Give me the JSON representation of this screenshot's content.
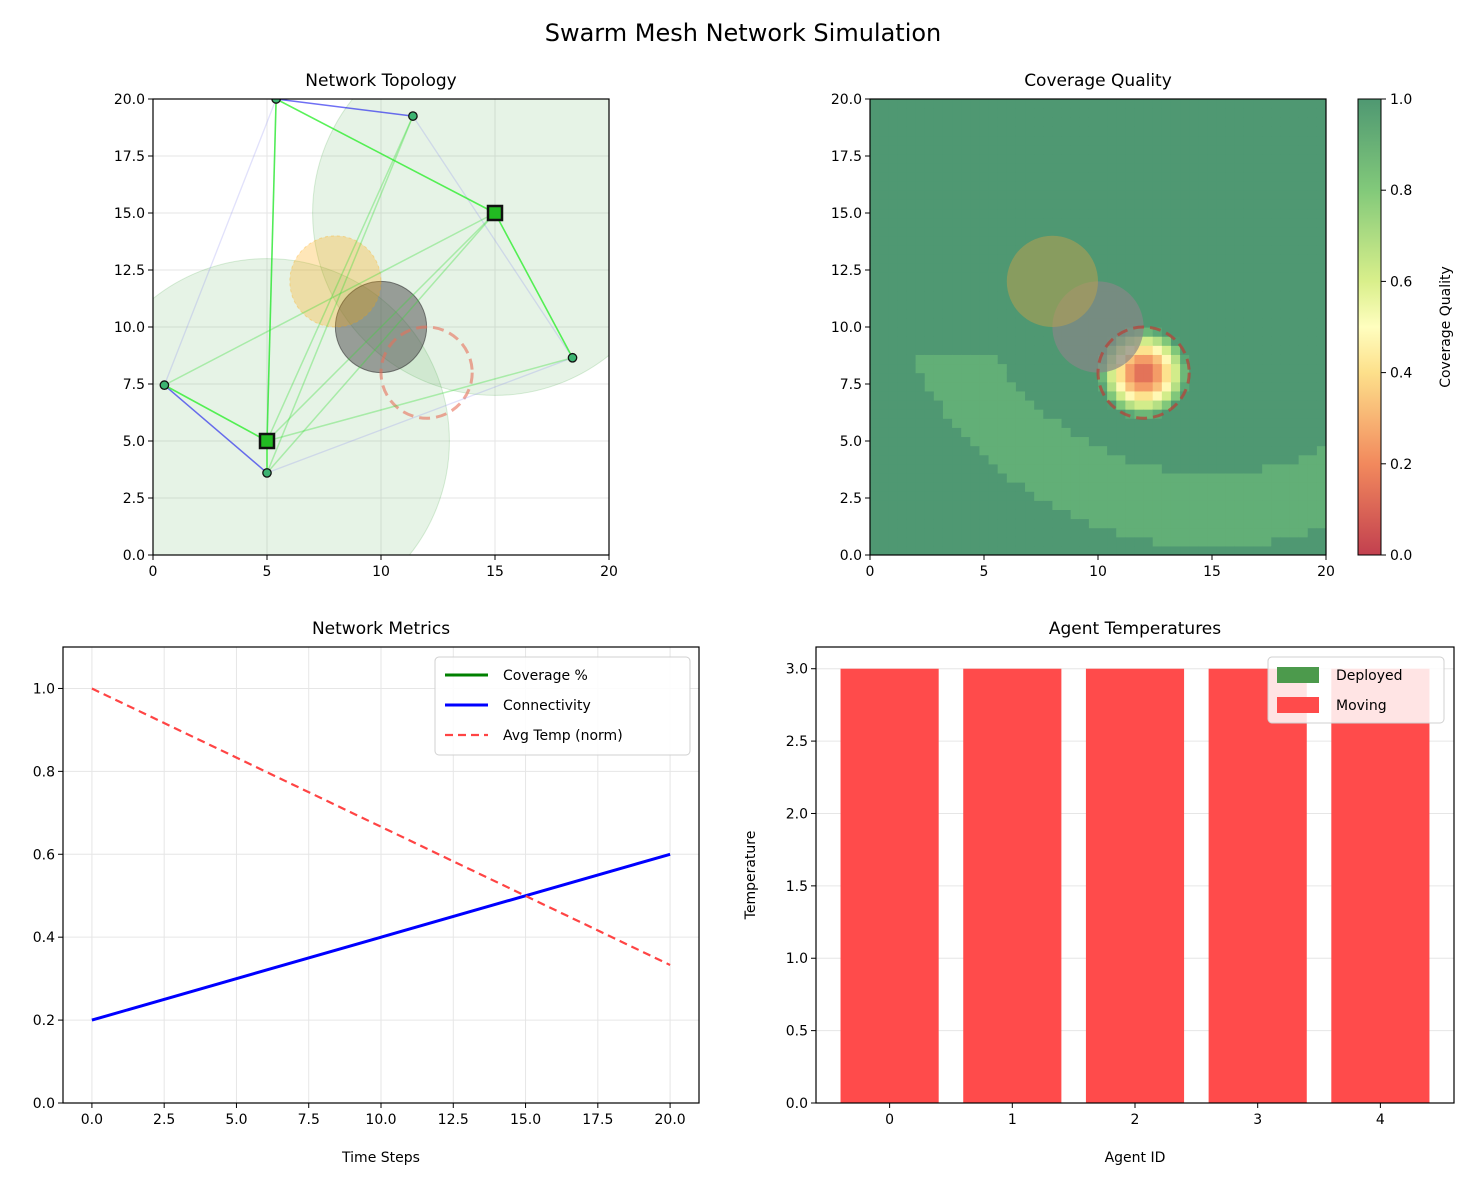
{
  "figure_title": "Swarm Mesh Network Simulation",
  "colors": {
    "coverage_line": "#008000",
    "connectivity_line": "#0000ff",
    "avg_temp_line": "#ff4444",
    "deployed_bar": "#4c9a4c",
    "moving_bar": "#ff4b4b",
    "agent_fill": "#3cb371",
    "grid": "#e6e6e6"
  },
  "chart_data": [
    {
      "id": "topology",
      "type": "scatter",
      "title": "Network Topology",
      "xlim": [
        0,
        20
      ],
      "ylim": [
        0,
        20
      ],
      "x_ticks": [
        "0",
        "5",
        "10",
        "15",
        "20"
      ],
      "y_ticks": [
        "0.0",
        "2.5",
        "5.0",
        "7.5",
        "10.0",
        "12.5",
        "15.0",
        "17.5",
        "20.0"
      ],
      "grid": true,
      "anchors": [
        {
          "x": 5.0,
          "y": 5.0
        },
        {
          "x": 15.0,
          "y": 15.0
        }
      ],
      "agents": [
        {
          "x": 0.5,
          "y": 7.45
        },
        {
          "x": 5.0,
          "y": 3.6
        },
        {
          "x": 5.4,
          "y": 20.0
        },
        {
          "x": 11.4,
          "y": 19.25
        },
        {
          "x": 18.4,
          "y": 8.65
        }
      ],
      "anchor_coverage_radius": 8.0,
      "obstacles": [
        {
          "x": 10.0,
          "y": 10.0,
          "r": 2.0,
          "kind": "obstacle"
        },
        {
          "x": 8.0,
          "y": 12.0,
          "r": 2.0,
          "kind": "interference"
        }
      ],
      "target_zone": {
        "x": 12.0,
        "y": 8.0,
        "r": 2.0
      },
      "links_strong": [
        [
          [
            0.5,
            7.45
          ],
          [
            5.0,
            5.0
          ]
        ],
        [
          [
            5.0,
            5.0
          ],
          [
            5.0,
            3.6
          ]
        ],
        [
          [
            15.0,
            15.0
          ],
          [
            18.4,
            8.65
          ]
        ],
        [
          [
            15.0,
            15.0
          ],
          [
            5.4,
            20.0
          ]
        ],
        [
          [
            5.4,
            20.0
          ],
          [
            5.0,
            5.0
          ]
        ]
      ],
      "links_weak": [
        [
          [
            5.0,
            5.0
          ],
          [
            15.0,
            15.0
          ]
        ],
        [
          [
            5.0,
            5.0
          ],
          [
            11.4,
            19.25
          ]
        ],
        [
          [
            5.0,
            5.0
          ],
          [
            18.4,
            8.65
          ]
        ],
        [
          [
            0.5,
            7.45
          ],
          [
            15.0,
            15.0
          ]
        ],
        [
          [
            5.0,
            3.6
          ],
          [
            15.0,
            15.0
          ]
        ],
        [
          [
            11.4,
            19.25
          ],
          [
            5.0,
            3.6
          ]
        ]
      ],
      "links_blue": [
        [
          [
            0.5,
            7.45
          ],
          [
            5.0,
            3.6
          ]
        ],
        [
          [
            5.4,
            20.0
          ],
          [
            11.4,
            19.25
          ]
        ]
      ],
      "links_faint": [
        [
          [
            0.5,
            7.45
          ],
          [
            5.4,
            20.0
          ]
        ],
        [
          [
            11.4,
            19.25
          ],
          [
            18.4,
            8.65
          ]
        ],
        [
          [
            5.0,
            3.6
          ],
          [
            18.4,
            8.65
          ]
        ],
        [
          [
            5.4,
            20.0
          ],
          [
            5.0,
            5.0
          ]
        ]
      ]
    },
    {
      "id": "coverage",
      "type": "heatmap",
      "title": "Coverage Quality",
      "xlim": [
        0,
        20
      ],
      "ylim": [
        0,
        20
      ],
      "x_ticks": [
        "0",
        "5",
        "10",
        "15",
        "20"
      ],
      "y_ticks": [
        "0.0",
        "2.5",
        "5.0",
        "7.5",
        "10.0",
        "12.5",
        "15.0",
        "17.5",
        "20.0"
      ],
      "colorbar_label": "Coverage Quality",
      "colorbar_range": [
        0,
        1
      ],
      "colorbar_ticks": [
        "0.0",
        "0.2",
        "0.4",
        "0.6",
        "0.8",
        "1.0"
      ],
      "weak_spot": {
        "x": 12.0,
        "y": 8.0,
        "r": 2.0,
        "min_value": 0.1
      },
      "obstacles": [
        {
          "x": 10.0,
          "y": 10.0,
          "r": 2.0,
          "kind": "obstacle"
        },
        {
          "x": 8.0,
          "y": 12.0,
          "r": 2.0,
          "kind": "interference"
        }
      ]
    },
    {
      "id": "metrics",
      "type": "line",
      "title": "Network Metrics",
      "xlabel": "Time Steps",
      "ylabel": "",
      "xlim": [
        -1.0,
        21.0
      ],
      "ylim": [
        0.0,
        1.1
      ],
      "x_ticks": [
        "0.0",
        "2.5",
        "5.0",
        "7.5",
        "10.0",
        "12.5",
        "15.0",
        "17.5",
        "20.0"
      ],
      "y_ticks": [
        "0.0",
        "0.2",
        "0.4",
        "0.6",
        "0.8",
        "1.0"
      ],
      "grid": true,
      "legend_position": "top-right",
      "series": [
        {
          "name": "Coverage %",
          "style": "solid",
          "x": [],
          "values": []
        },
        {
          "name": "Connectivity",
          "style": "solid",
          "x": [
            0,
            20
          ],
          "values": [
            0.2,
            0.6
          ]
        },
        {
          "name": "Avg Temp (norm)",
          "style": "dashed",
          "x": [
            0,
            20
          ],
          "values": [
            1.0,
            0.333
          ]
        }
      ]
    },
    {
      "id": "temperatures",
      "type": "bar",
      "title": "Agent Temperatures",
      "xlabel": "Agent ID",
      "ylabel": "Temperature",
      "ylim": [
        0,
        3.15
      ],
      "categories": [
        "0",
        "1",
        "2",
        "3",
        "4"
      ],
      "values": [
        3.0,
        3.0,
        3.0,
        3.0,
        3.0
      ],
      "status": [
        "Moving",
        "Moving",
        "Moving",
        "Moving",
        "Moving"
      ],
      "y_ticks": [
        "0.0",
        "0.5",
        "1.0",
        "1.5",
        "2.0",
        "2.5",
        "3.0"
      ],
      "grid": true,
      "legend_position": "top-right",
      "legend": [
        "Deployed",
        "Moving"
      ]
    }
  ]
}
